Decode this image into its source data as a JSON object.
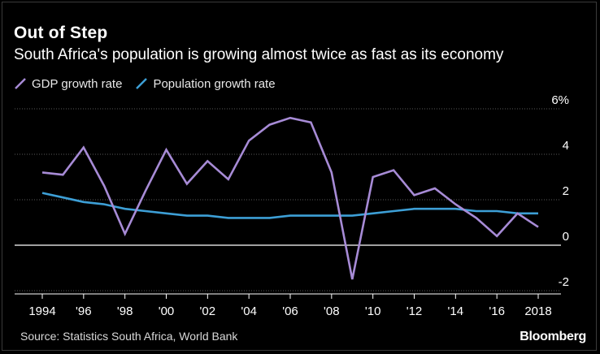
{
  "colors": {
    "background": "#000000",
    "gdp": "#a78bd6",
    "population": "#3d9fd6",
    "grid": "#5a5a5a",
    "axis": "#ffffff",
    "text": "#ffffff"
  },
  "header": {
    "title": "Out of Step",
    "subtitle": "South Africa's population is growing almost twice as fast as its economy"
  },
  "footer": {
    "source": "Source: Statistics South Africa, World Bank",
    "brand": "Bloomberg"
  },
  "chart_data": {
    "type": "line",
    "title": "Out of Step",
    "subtitle": "South Africa's population is growing almost twice as fast as its economy",
    "x": [
      1994,
      1995,
      1996,
      1997,
      1998,
      1999,
      2000,
      2001,
      2002,
      2003,
      2004,
      2005,
      2006,
      2007,
      2008,
      2009,
      2010,
      2011,
      2012,
      2013,
      2014,
      2015,
      2016,
      2017,
      2018
    ],
    "series": [
      {
        "name": "GDP growth rate",
        "color": "#a78bd6",
        "values": [
          3.2,
          3.1,
          4.3,
          2.6,
          0.5,
          2.4,
          4.2,
          2.7,
          3.7,
          2.9,
          4.6,
          5.3,
          5.6,
          5.4,
          3.2,
          -1.5,
          3.0,
          3.3,
          2.2,
          2.5,
          1.8,
          1.2,
          0.4,
          1.4,
          0.8
        ]
      },
      {
        "name": "Population growth rate",
        "color": "#3d9fd6",
        "values": [
          2.3,
          2.1,
          1.9,
          1.8,
          1.6,
          1.5,
          1.4,
          1.3,
          1.3,
          1.2,
          1.2,
          1.2,
          1.3,
          1.3,
          1.3,
          1.3,
          1.4,
          1.5,
          1.6,
          1.6,
          1.6,
          1.5,
          1.5,
          1.4,
          1.4
        ]
      }
    ],
    "xticks": [
      {
        "value": 1994,
        "label": "1994"
      },
      {
        "value": 1996,
        "label": "'96"
      },
      {
        "value": 1998,
        "label": "'98"
      },
      {
        "value": 2000,
        "label": "'00"
      },
      {
        "value": 2002,
        "label": "'02"
      },
      {
        "value": 2004,
        "label": "'04"
      },
      {
        "value": 2006,
        "label": "'06"
      },
      {
        "value": 2008,
        "label": "'08"
      },
      {
        "value": 2010,
        "label": "'10"
      },
      {
        "value": 2012,
        "label": "'12"
      },
      {
        "value": 2014,
        "label": "'14"
      },
      {
        "value": 2016,
        "label": "'16"
      },
      {
        "value": 2018,
        "label": "2018"
      }
    ],
    "yticks": [
      {
        "value": 6,
        "label": "6%"
      },
      {
        "value": 4,
        "label": "4"
      },
      {
        "value": 2,
        "label": "2"
      },
      {
        "value": 0,
        "label": "0"
      },
      {
        "value": -2,
        "label": "-2"
      }
    ],
    "ylim": [
      -2,
      6
    ],
    "xlim": [
      1994,
      2018
    ],
    "grid": true,
    "legend": "top-left"
  }
}
